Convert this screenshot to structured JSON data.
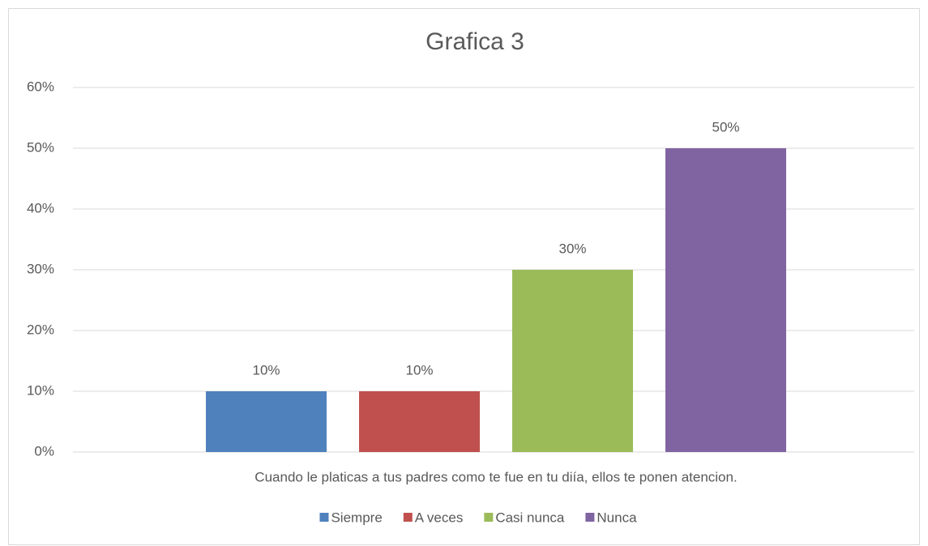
{
  "chart_data": {
    "type": "bar",
    "title": "Grafica 3",
    "categories": [
      "Cuando le platicas a tus padres como te fue en tu diía, ellos te ponen atencion."
    ],
    "series": [
      {
        "name": "Siempre",
        "color": "#4f81bd",
        "values": [
          10
        ],
        "value_labels": [
          "10%"
        ]
      },
      {
        "name": "A veces",
        "color": "#c0504d",
        "values": [
          10
        ],
        "value_labels": [
          "10%"
        ]
      },
      {
        "name": "Casi nunca",
        "color": "#9bbb59",
        "values": [
          30
        ],
        "value_labels": [
          "30%"
        ]
      },
      {
        "name": "Nunca",
        "color": "#8064a2",
        "values": [
          50
        ],
        "value_labels": [
          "50%"
        ]
      }
    ],
    "ylim": [
      0,
      60
    ],
    "yticks": [
      {
        "value": 0,
        "label": "0%"
      },
      {
        "value": 10,
        "label": "10%"
      },
      {
        "value": 20,
        "label": "20%"
      },
      {
        "value": 30,
        "label": "30%"
      },
      {
        "value": 40,
        "label": "40%"
      },
      {
        "value": 50,
        "label": "50%"
      },
      {
        "value": 60,
        "label": "60%"
      }
    ],
    "grid": true,
    "legend": "bottom"
  }
}
